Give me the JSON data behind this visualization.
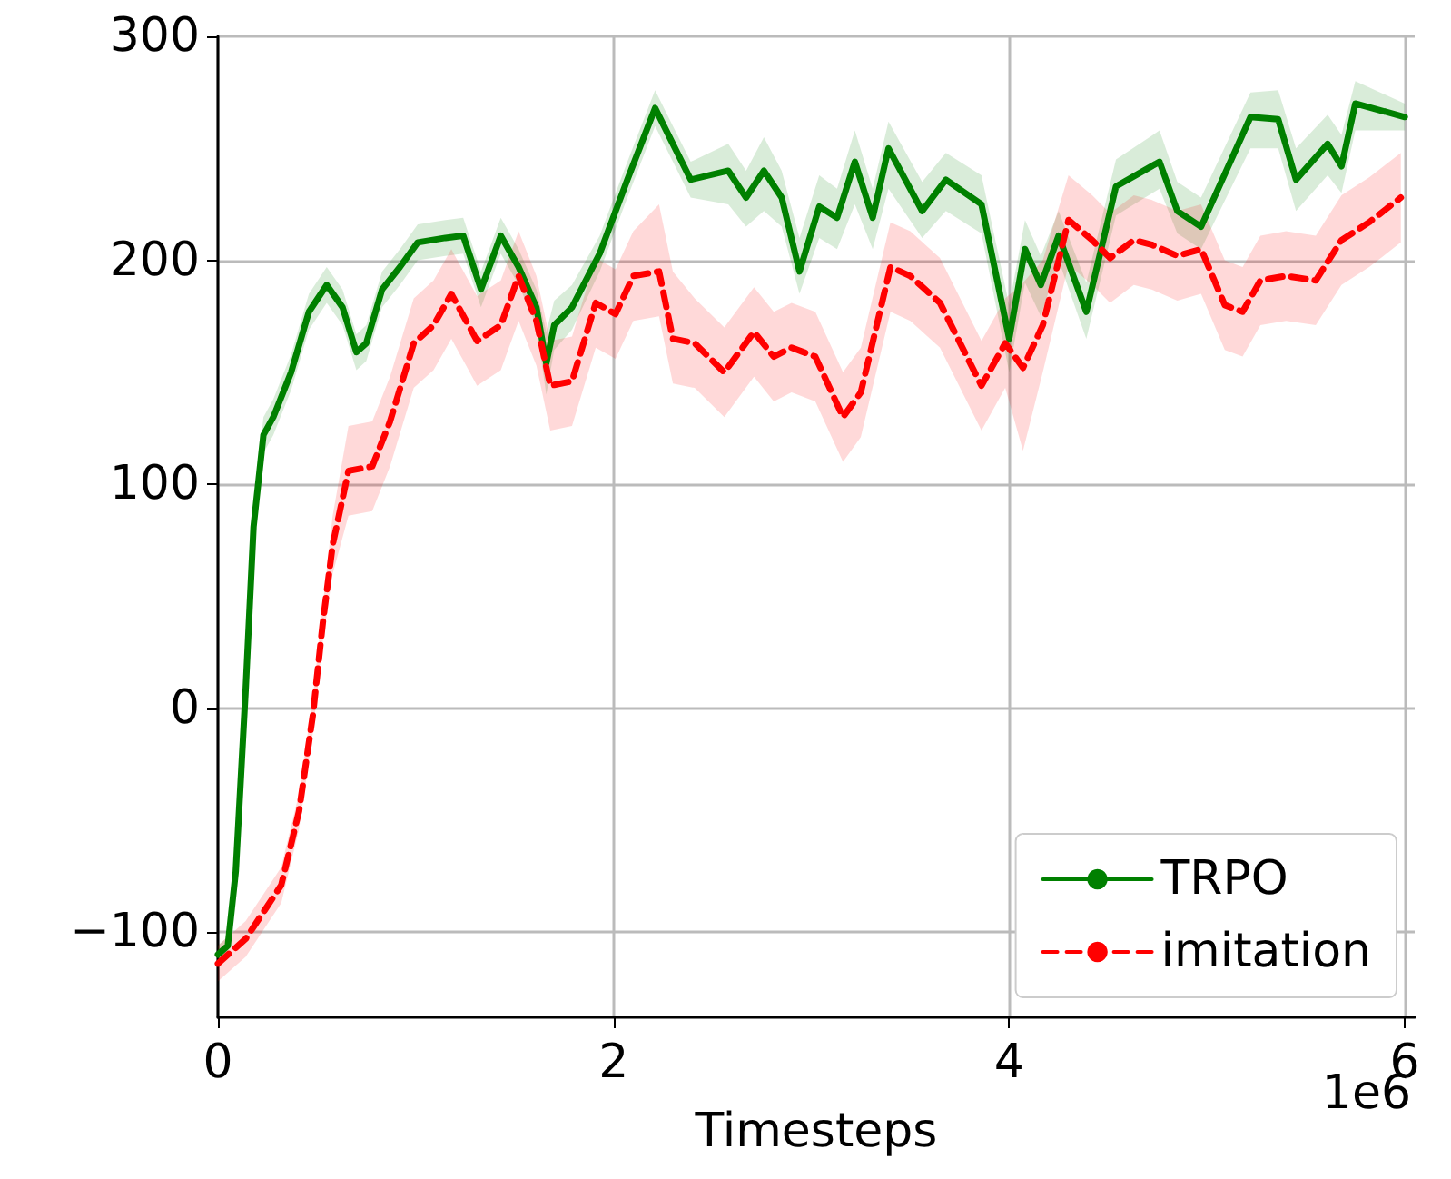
{
  "chart_data": {
    "type": "line",
    "xlabel": "Timesteps",
    "annotations": [
      "1e6"
    ],
    "xlim": [
      0,
      6.05
    ],
    "xticks": [
      0,
      2,
      4,
      6
    ],
    "ylim": [
      -138,
      300
    ],
    "yticks": [
      -100,
      0,
      100,
      200,
      300
    ],
    "grid": true,
    "legend": "bottom right",
    "marker": "none",
    "series": [
      {
        "name": "TRPO",
        "color": "#008000",
        "line_style": "solid",
        "x": [
          0.0,
          0.05,
          0.09,
          0.14,
          0.18,
          0.23,
          0.28,
          0.37,
          0.46,
          0.55,
          0.63,
          0.7,
          0.75,
          0.83,
          0.92,
          1.01,
          1.15,
          1.24,
          1.33,
          1.43,
          1.52,
          1.61,
          1.66,
          1.7,
          1.79,
          1.93,
          2.07,
          2.21,
          2.3,
          2.39,
          2.58,
          2.67,
          2.76,
          2.85,
          2.94,
          3.04,
          3.13,
          3.22,
          3.31,
          3.39,
          3.56,
          3.68,
          3.86,
          4.0,
          4.08,
          4.16,
          4.25,
          4.39,
          4.54,
          4.76,
          4.85,
          4.97,
          5.22,
          5.36,
          5.45,
          5.61,
          5.68,
          5.75,
          6.0
        ],
        "values": [
          -110,
          -106,
          -73,
          8,
          81,
          122,
          130,
          150,
          177,
          189,
          179,
          159,
          163,
          187,
          197,
          208,
          210,
          211,
          187,
          211,
          197,
          179,
          154,
          171,
          179,
          203,
          236,
          268,
          252,
          236,
          240,
          228,
          240,
          228,
          195,
          224,
          219,
          244,
          219,
          250,
          222,
          236,
          225,
          165,
          205,
          189,
          211,
          177,
          233,
          244,
          222,
          215,
          264,
          263,
          236,
          252,
          242,
          270,
          264
        ],
        "lower": [
          -114,
          -110,
          -78,
          0,
          73,
          114,
          122,
          142,
          169,
          181,
          171,
          151,
          155,
          179,
          189,
          200,
          202,
          203,
          179,
          203,
          189,
          171,
          140,
          160,
          169,
          195,
          228,
          260,
          244,
          228,
          225,
          215,
          222,
          215,
          185,
          210,
          205,
          225,
          205,
          232,
          210,
          222,
          212,
          150,
          190,
          175,
          200,
          165,
          220,
          232,
          212,
          205,
          250,
          250,
          222,
          238,
          230,
          258,
          258
        ],
        "upper": [
          -106,
          -102,
          -68,
          16,
          89,
          130,
          138,
          158,
          185,
          197,
          187,
          167,
          171,
          195,
          205,
          216,
          218,
          219,
          195,
          219,
          205,
          187,
          168,
          182,
          189,
          211,
          244,
          276,
          260,
          244,
          252,
          240,
          255,
          240,
          210,
          238,
          232,
          258,
          232,
          262,
          235,
          248,
          238,
          180,
          218,
          202,
          222,
          190,
          245,
          258,
          235,
          228,
          275,
          276,
          250,
          265,
          256,
          280,
          270
        ]
      },
      {
        "name": "imitation",
        "color": "#ff0000",
        "line_style": "dashed",
        "x": [
          0.0,
          0.14,
          0.32,
          0.41,
          0.48,
          0.53,
          0.58,
          0.66,
          0.78,
          0.87,
          0.99,
          1.09,
          1.18,
          1.31,
          1.43,
          1.52,
          1.61,
          1.68,
          1.79,
          1.91,
          2.01,
          2.1,
          2.23,
          2.3,
          2.41,
          2.56,
          2.71,
          2.81,
          2.9,
          3.02,
          3.16,
          3.25,
          3.4,
          3.5,
          3.65,
          3.86,
          3.98,
          4.07,
          4.17,
          4.3,
          4.42,
          4.51,
          4.63,
          4.72,
          4.85,
          4.97,
          5.09,
          5.18,
          5.27,
          5.4,
          5.55,
          5.68,
          5.82,
          5.98
        ],
        "values": [
          -114,
          -103,
          -79,
          -46,
          -3,
          38,
          73,
          106,
          108,
          128,
          163,
          171,
          185,
          164,
          171,
          193,
          173,
          144,
          146,
          181,
          176,
          193,
          195,
          165,
          163,
          150,
          168,
          157,
          161,
          157,
          130,
          141,
          197,
          193,
          181,
          144,
          163,
          152,
          171,
          218,
          209,
          201,
          209,
          207,
          202,
          205,
          180,
          177,
          191,
          193,
          191,
          209,
          217,
          228
        ],
        "lower": [
          -122,
          -111,
          -87,
          -54,
          -11,
          30,
          60,
          86,
          88,
          108,
          143,
          151,
          165,
          144,
          151,
          173,
          153,
          124,
          126,
          161,
          156,
          173,
          175,
          145,
          143,
          130,
          148,
          137,
          141,
          137,
          110,
          121,
          177,
          173,
          161,
          124,
          143,
          115,
          150,
          198,
          189,
          181,
          189,
          187,
          182,
          185,
          160,
          157,
          171,
          173,
          171,
          189,
          197,
          208
        ],
        "upper": [
          -106,
          -95,
          -71,
          -38,
          5,
          46,
          86,
          126,
          128,
          148,
          183,
          191,
          205,
          184,
          191,
          213,
          193,
          164,
          166,
          201,
          196,
          213,
          225,
          195,
          183,
          170,
          188,
          177,
          181,
          177,
          150,
          161,
          217,
          213,
          201,
          164,
          183,
          190,
          200,
          238,
          229,
          221,
          229,
          227,
          222,
          225,
          200,
          197,
          211,
          213,
          211,
          229,
          237,
          248
        ]
      }
    ]
  }
}
